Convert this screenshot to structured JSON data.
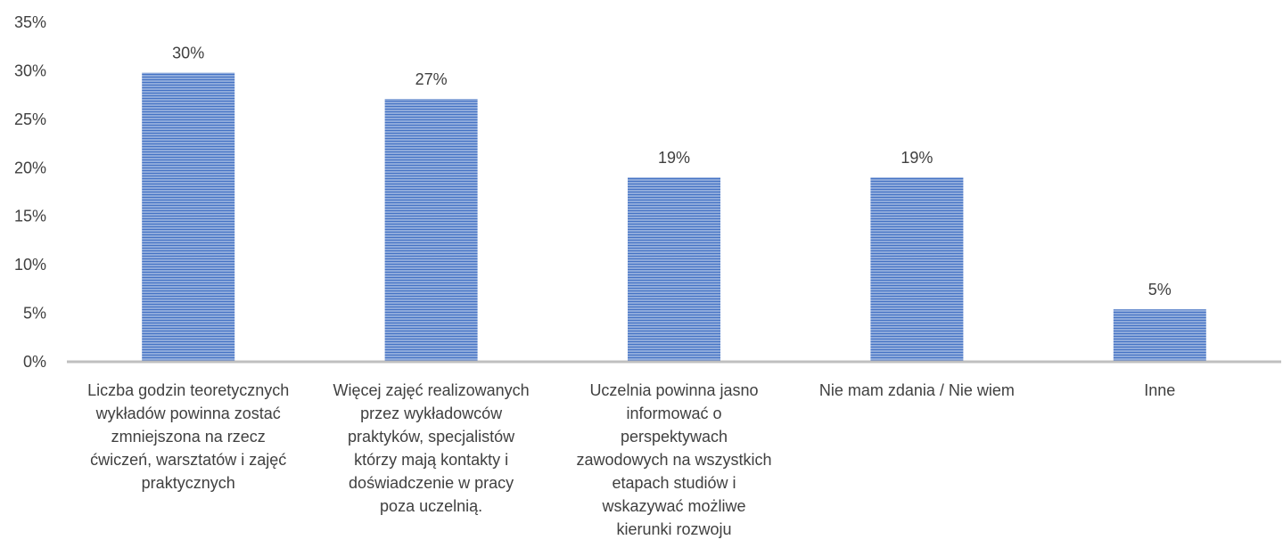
{
  "chart_data": {
    "type": "bar",
    "categories": [
      [
        "Liczba godzin teoretycznych",
        "wykładów powinna zostać",
        "zmniejszona na rzecz",
        "ćwiczeń, warsztatów i zajęć",
        "praktycznych"
      ],
      [
        "Więcej zajęć realizowanych",
        "przez wykładowców",
        "praktyków, specjalistów",
        "którzy mają kontakty i",
        "doświadczenie w pracy",
        "poza uczelnią."
      ],
      [
        "Uczelnia powinna jasno",
        "informować o",
        "perspektywach",
        "zawodowych na wszystkich",
        "etapach studiów i",
        "wskazywać możliwe",
        "kierunki rozwoju"
      ],
      [
        "Nie mam zdania / Nie wiem"
      ],
      [
        "Inne"
      ]
    ],
    "values": [
      30,
      27,
      19,
      19,
      5
    ],
    "value_labels": [
      "30%",
      "27%",
      "19%",
      "19%",
      "5%"
    ],
    "value_heights": [
      29.8,
      27.1,
      19.0,
      19.0,
      5.4
    ],
    "y_ticks": [
      "0%",
      "5%",
      "10%",
      "15%",
      "20%",
      "25%",
      "30%",
      "35%"
    ],
    "ylim": [
      0,
      35
    ],
    "title": "",
    "xlabel": "",
    "ylabel": "",
    "grid": false,
    "legend": "none",
    "colors": {
      "bar_fill": "#8EAADB",
      "bar_stripe": "#4472C4",
      "axis": "#BFBFBF",
      "text": "#404040"
    }
  }
}
